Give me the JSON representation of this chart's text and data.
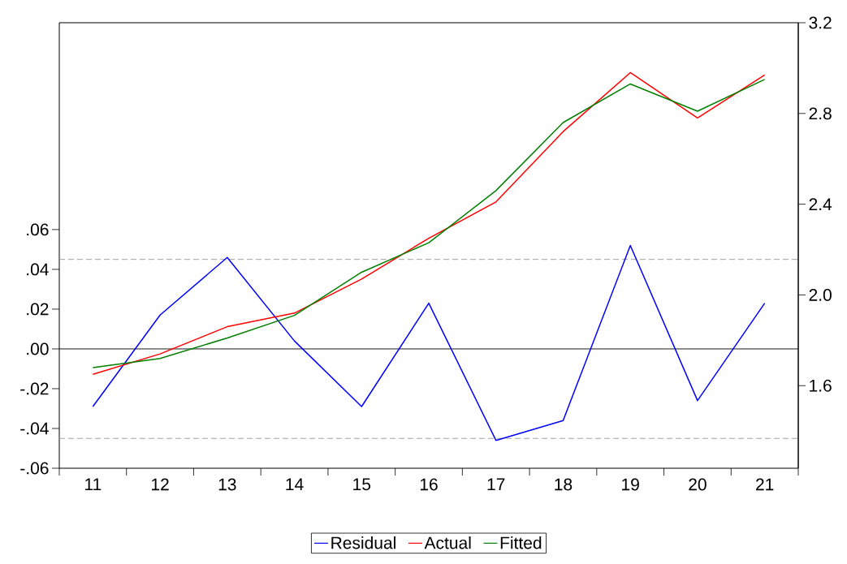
{
  "chart_data": {
    "type": "line",
    "categories": [
      "11",
      "12",
      "13",
      "14",
      "15",
      "16",
      "17",
      "18",
      "19",
      "20",
      "21"
    ],
    "series": [
      {
        "name": "Residual",
        "color": "#0000ff",
        "values": [
          -0.029,
          0.017,
          0.046,
          0.004,
          -0.029,
          0.023,
          -0.046,
          -0.036,
          0.052,
          -0.026,
          0.023
        ]
      },
      {
        "name": "Actual",
        "color": "#ff0000",
        "axis": "y2",
        "values": [
          1.65,
          1.74,
          1.86,
          1.92,
          2.07,
          2.25,
          2.41,
          2.72,
          2.98,
          2.78,
          2.97
        ]
      },
      {
        "name": "Fitted",
        "color": "#008000",
        "axis": "y2",
        "values": [
          1.68,
          1.72,
          1.81,
          1.91,
          2.1,
          2.23,
          2.46,
          2.76,
          2.93,
          2.81,
          2.95
        ]
      }
    ],
    "ylim": [
      -0.06,
      0.164
    ],
    "yticks": [
      {
        "value": -0.06,
        "label": "-.06"
      },
      {
        "value": -0.04,
        "label": "-.04"
      },
      {
        "value": -0.02,
        "label": "-.02"
      },
      {
        "value": 0,
        "label": ".00"
      },
      {
        "value": 0.02,
        "label": ".02"
      },
      {
        "value": 0.04,
        "label": ".04"
      },
      {
        "value": 0.06,
        "label": ".06"
      }
    ],
    "y2lim": [
      1.236,
      3.2
    ],
    "y2ticks": [
      1.6,
      {
        "value": 2,
        "label": "2.0"
      },
      2.4,
      2.8,
      3.2
    ],
    "ref_lines": [
      {
        "axis": "y",
        "value": 0,
        "color": "#000000",
        "line_style": "solid"
      },
      {
        "axis": "y",
        "value": 0.045,
        "color": "#999999",
        "line_style": "dashed"
      },
      {
        "axis": "y",
        "value": -0.045,
        "color": "#999999",
        "line_style": "dashed"
      }
    ],
    "line_style": "solid",
    "grid": false,
    "legend": "bottom"
  }
}
